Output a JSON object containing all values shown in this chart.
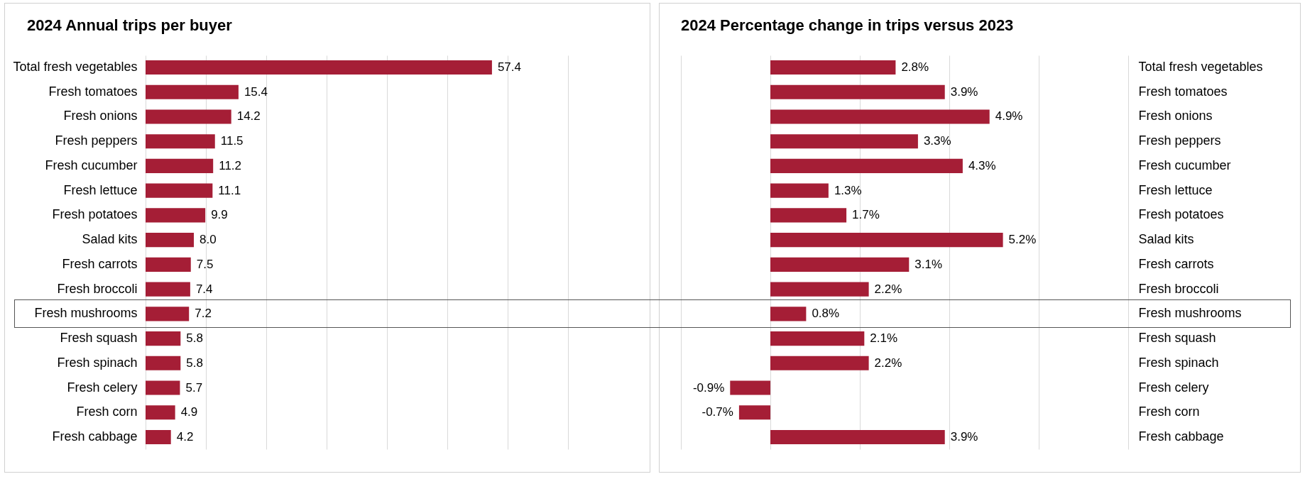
{
  "chart_data": [
    {
      "type": "bar",
      "orientation": "horizontal",
      "title": "2024 Annual trips per buyer",
      "categories": [
        "Total fresh vegetables",
        "Fresh tomatoes",
        "Fresh onions",
        "Fresh peppers",
        "Fresh cucumber",
        "Fresh lettuce",
        "Fresh potatoes",
        "Salad kits",
        "Fresh carrots",
        "Fresh broccoli",
        "Fresh mushrooms",
        "Fresh squash",
        "Fresh spinach",
        "Fresh celery",
        "Fresh corn",
        "Fresh cabbage"
      ],
      "values": [
        57.4,
        15.4,
        14.2,
        11.5,
        11.2,
        11.1,
        9.9,
        8.0,
        7.5,
        7.4,
        7.2,
        5.8,
        5.8,
        5.7,
        4.9,
        4.2
      ],
      "value_labels": [
        "57.4",
        "15.4",
        "14.2",
        "11.5",
        "11.2",
        "11.1",
        "9.9",
        "8.0",
        "7.5",
        "7.4",
        "7.2",
        "5.8",
        "5.8",
        "5.7",
        "4.9",
        "4.2"
      ],
      "color": "#a51e36",
      "xlim": [
        0,
        70
      ],
      "xticks": [
        {
          "value": 0,
          "label": null
        },
        {
          "value": 10,
          "label": null
        },
        {
          "value": 20,
          "label": null
        },
        {
          "value": 30,
          "label": null
        },
        {
          "value": 40,
          "label": null
        },
        {
          "value": 50,
          "label": null
        },
        {
          "value": 60,
          "label": null
        },
        {
          "value": 70,
          "label": null
        }
      ],
      "grid": "x",
      "tick_labels": "y"
    },
    {
      "type": "bar",
      "orientation": "horizontal",
      "title": "2024 Percentage change in trips versus 2023",
      "categories": [
        "Total fresh vegetables",
        "Fresh tomatoes",
        "Fresh onions",
        "Fresh peppers",
        "Fresh cucumber",
        "Fresh lettuce",
        "Fresh potatoes",
        "Salad kits",
        "Fresh carrots",
        "Fresh broccoli",
        "Fresh mushrooms",
        "Fresh squash",
        "Fresh spinach",
        "Fresh celery",
        "Fresh corn",
        "Fresh cabbage"
      ],
      "values": [
        2.8,
        3.9,
        4.9,
        3.3,
        4.3,
        1.3,
        1.7,
        5.2,
        3.1,
        2.2,
        0.8,
        2.1,
        2.2,
        -0.9,
        -0.7,
        3.9
      ],
      "value_labels": [
        "2.8%",
        "3.9%",
        "4.9%",
        "3.3%",
        "4.3%",
        "1.3%",
        "1.7%",
        "5.2%",
        "3.1%",
        "2.2%",
        "0.8%",
        "2.1%",
        "2.2%",
        "-0.9%",
        "-0.7%",
        "3.9%"
      ],
      "color": "#a51e36",
      "xlim": [
        -2,
        8
      ],
      "xticks": [
        {
          "value": -2,
          "label": null
        },
        {
          "value": 0,
          "label": null
        },
        {
          "value": 2,
          "label": null
        },
        {
          "value": 4,
          "label": null
        },
        {
          "value": 6,
          "label": null
        },
        {
          "value": 8,
          "label": null
        }
      ],
      "grid": "x",
      "tick_labels": "y"
    }
  ]
}
